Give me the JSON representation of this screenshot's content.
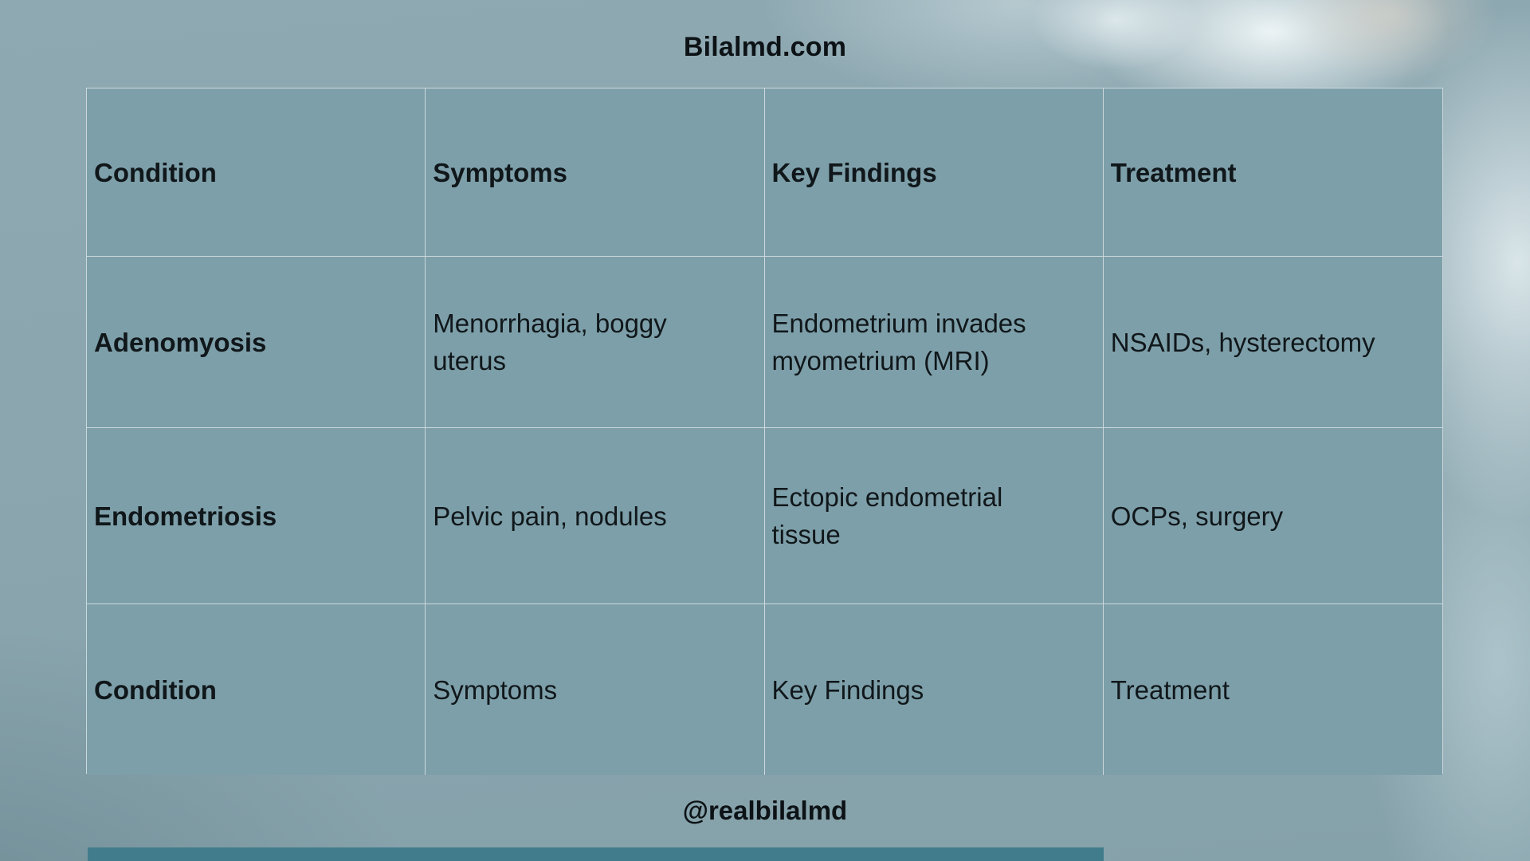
{
  "page": {
    "title": "Bilalmd.com",
    "handle": "@realbilalmd"
  },
  "table": {
    "headers": [
      "Condition",
      "Symptoms",
      "Key Findings",
      "Treatment"
    ],
    "rows": [
      {
        "condition": "Adenomyosis",
        "symptoms": "Menorrhagia, boggy uterus",
        "key_findings": "Endometrium invades myometrium (MRI)",
        "treatment": "NSAIDs, hysterectomy"
      },
      {
        "condition": "Endometriosis",
        "symptoms": "Pelvic pain, nodules",
        "key_findings": "Ectopic endometrial tissue",
        "treatment": "OCPs, surgery"
      },
      {
        "condition": "Condition",
        "symptoms": "Symptoms",
        "key_findings": "Key Findings",
        "treatment": "Treatment"
      }
    ]
  },
  "colors": {
    "page_background": "#8ba6af",
    "cell_background": "#7d9fa9",
    "table_border": "#cdd9dc",
    "text": "#10171a",
    "accent_bar": "#417c8c"
  }
}
